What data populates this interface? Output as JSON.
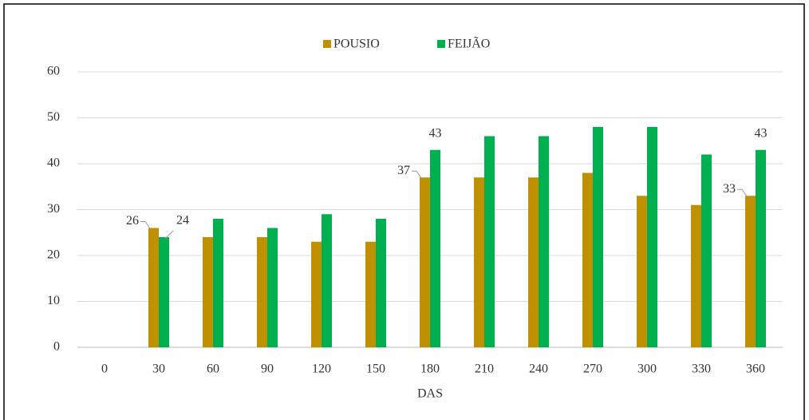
{
  "chart_data": {
    "type": "bar",
    "categories": [
      "0",
      "30",
      "60",
      "90",
      "120",
      "150",
      "180",
      "210",
      "240",
      "270",
      "300",
      "330",
      "360"
    ],
    "series": [
      {
        "name": "POUSIO",
        "color": "#bf9000",
        "values": [
          null,
          26,
          24,
          24,
          23,
          23,
          37,
          37,
          37,
          38,
          33,
          31,
          33
        ]
      },
      {
        "name": "FEIJÃO",
        "color": "#00b050",
        "values": [
          null,
          24,
          28,
          26,
          29,
          28,
          43,
          46,
          46,
          48,
          48,
          42,
          43
        ]
      }
    ],
    "labeled_indices": [
      1,
      6,
      12
    ],
    "xlabel": "DAS",
    "ylim": [
      0,
      60
    ],
    "yticks": [
      0,
      10,
      20,
      30,
      40,
      50,
      60
    ],
    "grid": true,
    "legend": "top"
  }
}
